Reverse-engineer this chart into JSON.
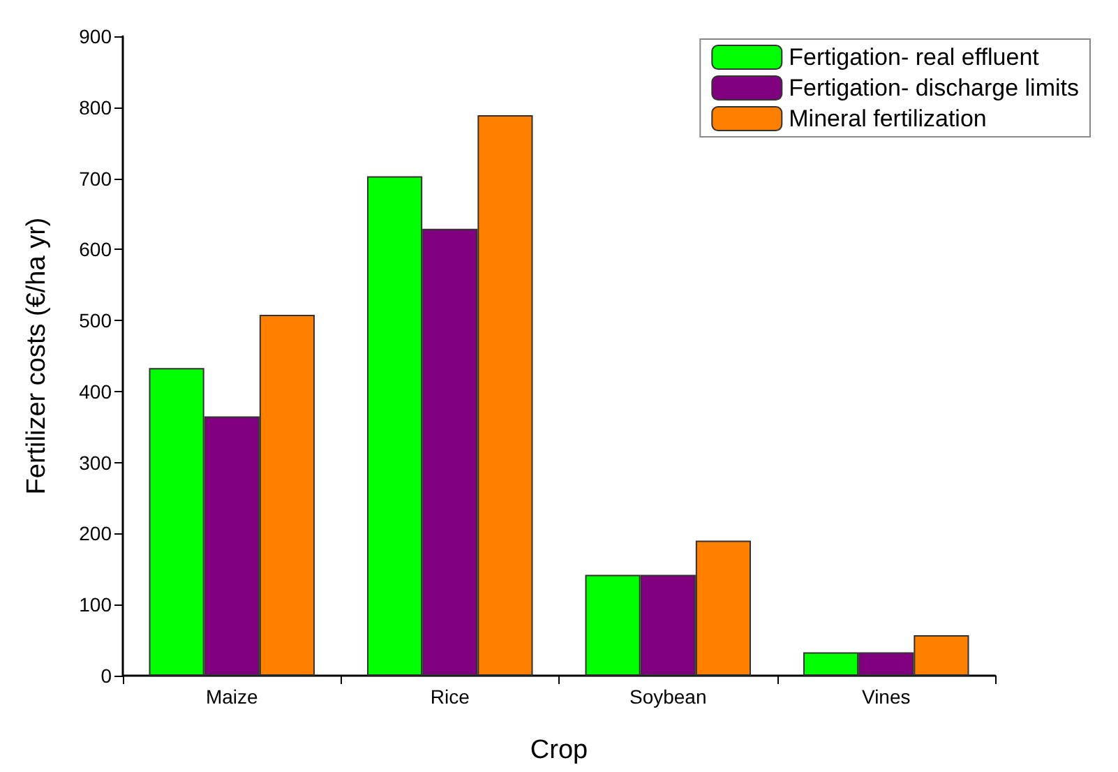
{
  "chart_data": {
    "type": "bar",
    "xlabel": "Crop",
    "ylabel": "Fertilizer costs (€/ha yr)",
    "categories": [
      "Maize",
      "Rice",
      "Soybean",
      "Vines"
    ],
    "series": [
      {
        "name": "Fertigation- real effluent",
        "color": "#00ff00",
        "values": [
          433,
          703,
          142,
          33
        ]
      },
      {
        "name": "Fertigation- discharge limits",
        "color": "#800080",
        "values": [
          365,
          629,
          142,
          33
        ]
      },
      {
        "name": "Mineral fertilization",
        "color": "#ff8000",
        "values": [
          508,
          789,
          190,
          57
        ]
      }
    ],
    "ylim": [
      0,
      900
    ],
    "yticks": [
      0,
      100,
      200,
      300,
      400,
      500,
      600,
      700,
      800,
      900
    ],
    "grid": false,
    "legend": "top right"
  }
}
